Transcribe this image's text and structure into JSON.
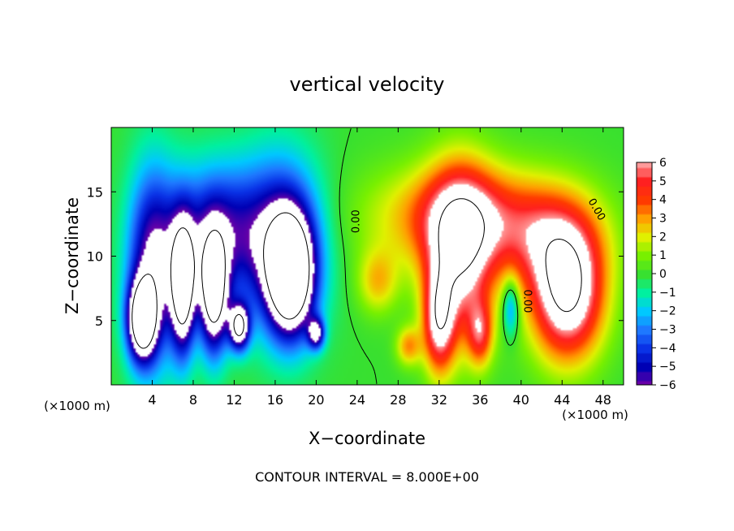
{
  "chart_data": {
    "type": "heatmap",
    "title": "vertical velocity",
    "xlabel": "X−coordinate",
    "ylabel": "Z−coordinate",
    "x_unit_left": "(×1000 m)",
    "x_unit_right": "(×1000 m)",
    "footer": "CONTOUR INTERVAL = 8.000E+00",
    "xlim": [
      0,
      50
    ],
    "ylim": [
      0,
      20
    ],
    "x_ticks": [
      4,
      8,
      12,
      16,
      20,
      24,
      28,
      32,
      36,
      40,
      44,
      48
    ],
    "x_tick_labels": [
      "4",
      "8",
      "12",
      "16",
      "20",
      "24",
      "28",
      "32",
      "36",
      "40",
      "44",
      "48"
    ],
    "y_ticks": [
      5,
      10,
      15
    ],
    "y_tick_labels": [
      "5",
      "10",
      "15"
    ],
    "contour_labels": [
      {
        "text": "0.00",
        "x": 24.2,
        "y": 12.7,
        "angle": -90
      },
      {
        "text": "0.00",
        "x": 40.3,
        "y": 6.5,
        "angle": 90
      },
      {
        "text": "0.00",
        "x": 47.1,
        "y": 13.5,
        "angle": 60
      }
    ],
    "colorbar": {
      "range": [
        -6,
        6
      ],
      "ticks": [
        6,
        5,
        4,
        3,
        2,
        1,
        0,
        -1,
        -2,
        -3,
        -4,
        -5,
        -6
      ],
      "tick_labels": [
        "6",
        "5",
        "4",
        "3",
        "2",
        "1",
        "0",
        "−1",
        "−2",
        "−3",
        "−4",
        "−5",
        "−6"
      ],
      "stops": [
        {
          "v": -6,
          "color": "#6a00a8"
        },
        {
          "v": -5,
          "color": "#0000b4"
        },
        {
          "v": -4,
          "color": "#0a32e6"
        },
        {
          "v": -3,
          "color": "#1e78ff"
        },
        {
          "v": -2,
          "color": "#00c8ff"
        },
        {
          "v": -1,
          "color": "#00f0a0"
        },
        {
          "v": 0,
          "color": "#38e030"
        },
        {
          "v": 1,
          "color": "#78f000"
        },
        {
          "v": 2,
          "color": "#e0f000"
        },
        {
          "v": 3,
          "color": "#ffa000"
        },
        {
          "v": 4,
          "color": "#ff3a00"
        },
        {
          "v": 5,
          "color": "#ff2020"
        },
        {
          "v": 6,
          "color": "#ff9a9a"
        }
      ]
    },
    "features": [
      {
        "x": 4,
        "z": 9,
        "sx": 2.4,
        "sz": 7.5,
        "amp": -6
      },
      {
        "x": 10,
        "z": 12,
        "sx": 4.5,
        "sz": 5.0,
        "amp": -5
      },
      {
        "x": 16.5,
        "z": 11,
        "sx": 4.0,
        "sz": 6.5,
        "amp": -5.5
      },
      {
        "x": 3,
        "z": 5,
        "sx": 1.4,
        "sz": 3.0,
        "amp": -9
      },
      {
        "x": 7,
        "z": 7.5,
        "sx": 1.2,
        "sz": 5.0,
        "amp": -9
      },
      {
        "x": 10,
        "z": 7,
        "sx": 1.4,
        "sz": 4.5,
        "amp": -9
      },
      {
        "x": 17.5,
        "z": 8.5,
        "sx": 2.2,
        "sz": 4.5,
        "amp": -10
      },
      {
        "x": 12.5,
        "z": 4.5,
        "sx": 1.0,
        "sz": 1.8,
        "amp": -8
      },
      {
        "x": 20,
        "z": 4,
        "sx": 0.8,
        "sz": 1.2,
        "amp": -6
      },
      {
        "x": 26,
        "z": 8,
        "sx": 2.0,
        "sz": 2.5,
        "amp": 2.5
      },
      {
        "x": 35,
        "z": 13,
        "sx": 9.0,
        "sz": 4.0,
        "amp": 4.5
      },
      {
        "x": 34,
        "z": 10,
        "sx": 3.2,
        "sz": 6.5,
        "amp": 6.5
      },
      {
        "x": 32,
        "z": 5,
        "sx": 1.5,
        "sz": 4.0,
        "amp": 6.0
      },
      {
        "x": 36,
        "z": 4,
        "sx": 1.2,
        "sz": 2.5,
        "amp": 4.0
      },
      {
        "x": 44.5,
        "z": 7,
        "sx": 3.5,
        "sz": 5.0,
        "amp": 8.0
      },
      {
        "x": 43,
        "z": 11,
        "sx": 5.0,
        "sz": 4.0,
        "amp": 3.0
      },
      {
        "x": 39,
        "z": 6,
        "sx": 0.8,
        "sz": 2.2,
        "amp": -3.5
      },
      {
        "x": 29,
        "z": 3,
        "sx": 1.2,
        "sz": 1.5,
        "amp": 3.0
      }
    ]
  }
}
